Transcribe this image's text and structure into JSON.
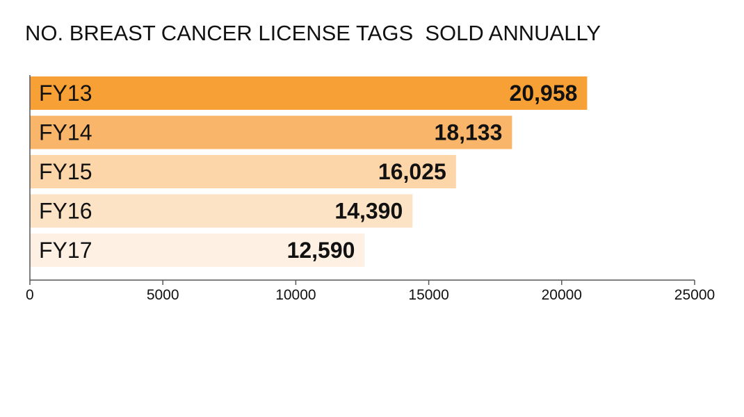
{
  "chart_data": {
    "type": "bar",
    "orientation": "horizontal",
    "title": "NO. BREAST CANCER LICENSE TAGS  SOLD ANNUALLY",
    "categories": [
      "FY13",
      "FY14",
      "FY15",
      "FY16",
      "FY17"
    ],
    "values": [
      20958,
      18133,
      16025,
      14390,
      12590
    ],
    "value_labels": [
      "20,958",
      "18,133",
      "16,025",
      "14,390",
      "12,590"
    ],
    "bar_colors": [
      "#f7a035",
      "#f9b56a",
      "#fcd5a9",
      "#fde3c6",
      "#fef0e2"
    ],
    "xlim": [
      0,
      25000
    ],
    "xticks": [
      0,
      5000,
      10000,
      15000,
      20000,
      25000
    ],
    "xtick_labels": [
      "0",
      "5000",
      "10000",
      "15000",
      "20000",
      "25000"
    ],
    "xlabel": "",
    "ylabel": "",
    "grid": false,
    "legend": "none"
  }
}
